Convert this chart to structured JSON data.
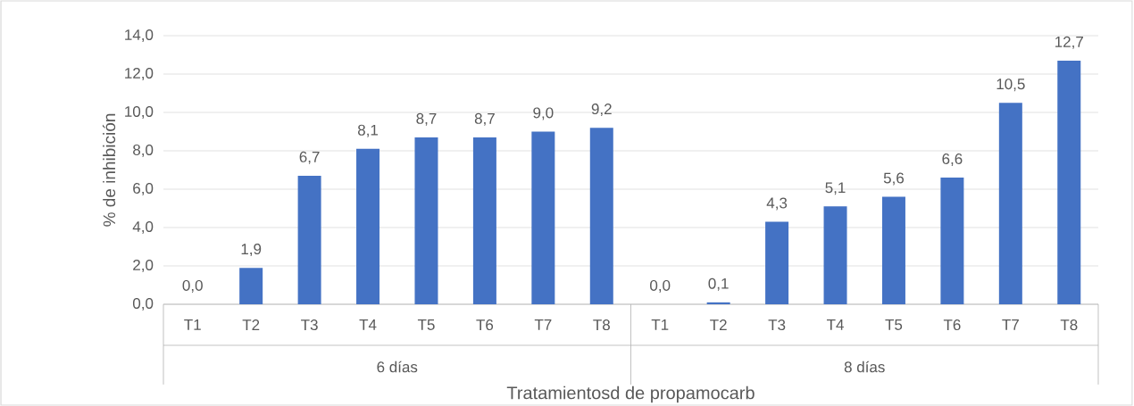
{
  "chart_data": {
    "type": "bar",
    "xlabel": "Tratamientosd de propamocarb",
    "ylabel": "% de inhibición",
    "categories": [
      "T1",
      "T2",
      "T3",
      "T4",
      "T5",
      "T6",
      "T7",
      "T8",
      "T1",
      "T2",
      "T3",
      "T4",
      "T5",
      "T6",
      "T7",
      "T8"
    ],
    "values": [
      0.0,
      1.9,
      6.7,
      8.1,
      8.7,
      8.7,
      9.0,
      9.2,
      0.0,
      0.1,
      4.3,
      5.1,
      5.6,
      6.6,
      10.5,
      12.7
    ],
    "value_labels": [
      "0,0",
      "1,9",
      "6,7",
      "8,1",
      "8,7",
      "8,7",
      "9,0",
      "9,2",
      "0,0",
      "0,1",
      "4,3",
      "5,1",
      "5,6",
      "6,6",
      "10,5",
      "12,7"
    ],
    "color": "#4472c4",
    "ylim": [
      0,
      14
    ],
    "yticks": [
      {
        "value": 0,
        "label": "0,0"
      },
      {
        "value": 2,
        "label": "2,0"
      },
      {
        "value": 4,
        "label": "4,0"
      },
      {
        "value": 6,
        "label": "6,0"
      },
      {
        "value": 8,
        "label": "8,0"
      },
      {
        "value": 10,
        "label": "10,0"
      },
      {
        "value": 12,
        "label": "12,0"
      },
      {
        "value": 14,
        "label": "14,0"
      }
    ],
    "grid": "y",
    "annotations": [
      "6 días",
      "8 días"
    ]
  }
}
